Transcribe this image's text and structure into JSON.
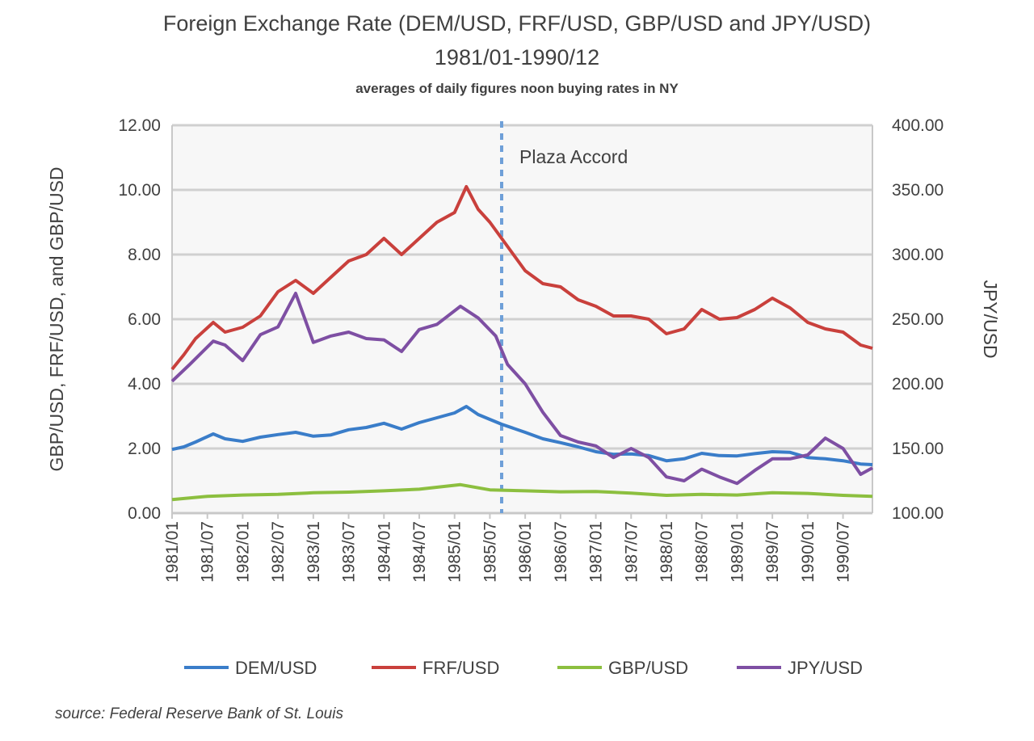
{
  "chart_data": {
    "type": "line",
    "title": "Foreign Exchange Rate (DEM/USD, FRF/USD,  GBP/USD and JPY/USD)",
    "subtitle": "1981/01-1990/12",
    "note": "averages of daily figures noon buying rates in NY",
    "source": "source: Federal Reserve Bank of St. Louis",
    "ylabel": "GBP/USD, FRF/USD,  and GBP/USD",
    "y2label": "JPY/USD",
    "ylim": [
      0,
      12
    ],
    "y2lim": [
      100,
      400
    ],
    "yticks": [
      "0.00",
      "2.00",
      "4.00",
      "6.00",
      "8.00",
      "10.00",
      "12.00"
    ],
    "y2ticks": [
      "100.00",
      "150.00",
      "200.00",
      "250.00",
      "300.00",
      "350.00",
      "400.00"
    ],
    "xrange": [
      "1981/01",
      "1990/12"
    ],
    "xticks": [
      "1981/01",
      "1981/07",
      "1982/01",
      "1982/07",
      "1983/01",
      "1983/07",
      "1984/01",
      "1984/07",
      "1985/01",
      "1985/07",
      "1986/01",
      "1986/07",
      "1987/01",
      "1987/07",
      "1988/01",
      "1988/07",
      "1989/01",
      "1989/07",
      "1990/01",
      "1990/07"
    ],
    "grid": true,
    "legend_position": "bottom",
    "annotation": {
      "label": "Plaza Accord",
      "x": "1985/09"
    },
    "series": [
      {
        "name": "DEM/USD",
        "axis": "left",
        "color": "#3a7dc9",
        "x": [
          "1981/01",
          "1981/03",
          "1981/05",
          "1981/08",
          "1981/10",
          "1982/01",
          "1982/04",
          "1982/07",
          "1982/10",
          "1983/01",
          "1983/04",
          "1983/07",
          "1983/10",
          "1984/01",
          "1984/04",
          "1984/07",
          "1984/10",
          "1985/01",
          "1985/03",
          "1985/05",
          "1985/07",
          "1985/09",
          "1986/01",
          "1986/04",
          "1986/07",
          "1986/10",
          "1987/01",
          "1987/04",
          "1987/07",
          "1987/10",
          "1988/01",
          "1988/04",
          "1988/07",
          "1988/10",
          "1989/01",
          "1989/04",
          "1989/07",
          "1989/10",
          "1990/01",
          "1990/04",
          "1990/07",
          "1990/10",
          "1990/12"
        ],
        "values": [
          1.97,
          2.05,
          2.2,
          2.45,
          2.3,
          2.22,
          2.35,
          2.43,
          2.5,
          2.38,
          2.42,
          2.58,
          2.65,
          2.78,
          2.6,
          2.8,
          2.95,
          3.1,
          3.3,
          3.05,
          2.9,
          2.75,
          2.5,
          2.3,
          2.18,
          2.05,
          1.9,
          1.82,
          1.83,
          1.78,
          1.62,
          1.68,
          1.85,
          1.78,
          1.77,
          1.84,
          1.9,
          1.88,
          1.72,
          1.68,
          1.62,
          1.52,
          1.5
        ]
      },
      {
        "name": "FRF/USD",
        "axis": "left",
        "color": "#c9403c",
        "x": [
          "1981/01",
          "1981/03",
          "1981/05",
          "1981/08",
          "1981/10",
          "1982/01",
          "1982/04",
          "1982/07",
          "1982/10",
          "1983/01",
          "1983/04",
          "1983/07",
          "1983/10",
          "1984/01",
          "1984/04",
          "1984/07",
          "1984/10",
          "1985/01",
          "1985/03",
          "1985/05",
          "1985/07",
          "1985/09",
          "1986/01",
          "1986/04",
          "1986/07",
          "1986/10",
          "1987/01",
          "1987/04",
          "1987/07",
          "1987/10",
          "1988/01",
          "1988/04",
          "1988/07",
          "1988/10",
          "1989/01",
          "1989/04",
          "1989/07",
          "1989/10",
          "1990/01",
          "1990/04",
          "1990/07",
          "1990/10",
          "1990/12"
        ],
        "values": [
          4.45,
          4.9,
          5.4,
          5.9,
          5.6,
          5.75,
          6.1,
          6.85,
          7.2,
          6.8,
          7.3,
          7.8,
          8.0,
          8.5,
          8.0,
          8.5,
          9.0,
          9.3,
          10.1,
          9.4,
          9.0,
          8.5,
          7.5,
          7.1,
          7.0,
          6.6,
          6.4,
          6.1,
          6.1,
          6.0,
          5.55,
          5.7,
          6.3,
          6.0,
          6.05,
          6.3,
          6.65,
          6.35,
          5.9,
          5.7,
          5.6,
          5.2,
          5.1
        ]
      },
      {
        "name": "GBP/USD",
        "axis": "left",
        "color": "#8cbf3f",
        "x": [
          "1981/01",
          "1981/07",
          "1982/01",
          "1982/07",
          "1983/01",
          "1983/07",
          "1984/01",
          "1984/07",
          "1985/02",
          "1985/07",
          "1986/01",
          "1986/07",
          "1987/01",
          "1987/07",
          "1988/01",
          "1988/07",
          "1989/01",
          "1989/07",
          "1990/01",
          "1990/07",
          "1990/12"
        ],
        "values": [
          0.42,
          0.52,
          0.56,
          0.58,
          0.63,
          0.65,
          0.69,
          0.74,
          0.88,
          0.72,
          0.69,
          0.66,
          0.67,
          0.62,
          0.55,
          0.58,
          0.56,
          0.63,
          0.61,
          0.55,
          0.52
        ]
      },
      {
        "name": "JPY/USD",
        "axis": "right",
        "color": "#7e4fa3",
        "x": [
          "1981/01",
          "1981/04",
          "1981/08",
          "1981/10",
          "1982/01",
          "1982/04",
          "1982/07",
          "1982/10",
          "1983/01",
          "1983/04",
          "1983/07",
          "1983/10",
          "1984/01",
          "1984/04",
          "1984/07",
          "1984/10",
          "1985/02",
          "1985/05",
          "1985/08",
          "1985/10",
          "1986/01",
          "1986/04",
          "1986/07",
          "1986/10",
          "1987/01",
          "1987/04",
          "1987/07",
          "1987/10",
          "1988/01",
          "1988/04",
          "1988/07",
          "1988/10",
          "1989/01",
          "1989/04",
          "1989/07",
          "1989/10",
          "1990/01",
          "1990/04",
          "1990/07",
          "1990/10",
          "1990/12"
        ],
        "values": [
          202,
          215,
          233,
          230,
          218,
          238,
          244,
          270,
          232,
          237,
          240,
          235,
          234,
          225,
          242,
          246,
          260,
          251,
          237,
          215,
          200,
          178,
          160,
          155,
          152,
          143,
          150,
          143,
          128,
          125,
          134,
          128,
          123,
          133,
          142,
          142,
          145,
          158,
          150,
          130,
          135
        ]
      }
    ]
  }
}
